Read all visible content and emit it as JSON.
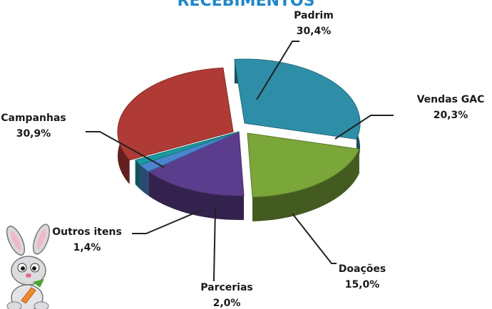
{
  "chart_data": {
    "type": "pie",
    "title": "RECEBIMENTOS",
    "slices": [
      {
        "name": "Padrim",
        "value": 30.4,
        "label": "30,4%",
        "color": "#2e8ea8"
      },
      {
        "name": "Vendas GAC",
        "value": 20.3,
        "label": "20,3%",
        "color": "#7aa63a"
      },
      {
        "name": "Doações",
        "value": 15.0,
        "label": "15,0%",
        "color": "#5a3d8c"
      },
      {
        "name": "Parcerias",
        "value": 2.0,
        "label": "2,0%",
        "color": "#4a86d0"
      },
      {
        "name": "Outros itens",
        "value": 1.4,
        "label": "1,4%",
        "color": "#1a9aa0"
      },
      {
        "name": "Campanhas",
        "value": 30.9,
        "label": "30,9%",
        "color": "#b03a35"
      }
    ]
  },
  "decoration": {
    "mascot_icon": "bunny-holding-carrot-icon"
  }
}
